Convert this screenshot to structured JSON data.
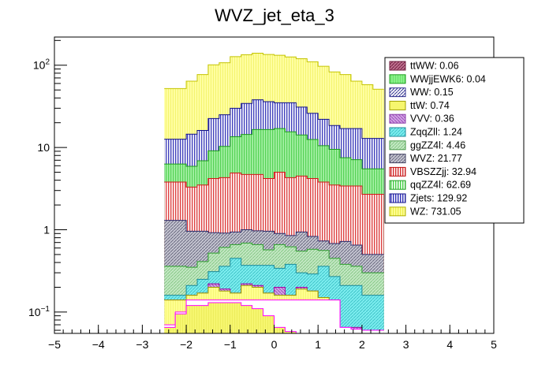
{
  "chart_data": {
    "type": "bar",
    "title": "WVZ_jet_eta_3",
    "xlabel": "",
    "ylabel": "",
    "xlim": [
      -5,
      5
    ],
    "ylim": [
      0.055,
      220
    ],
    "yscale": "log",
    "stacked": true,
    "bin_edges": [
      -2.5,
      -2.25,
      -2.0,
      -1.75,
      -1.5,
      -1.25,
      -1.0,
      -0.75,
      -0.5,
      -0.25,
      0.0,
      0.25,
      0.5,
      0.75,
      1.0,
      1.25,
      1.5,
      1.75,
      2.0,
      2.25,
      2.5
    ],
    "x_ticks": [
      -5,
      -4,
      -3,
      -2,
      -1,
      0,
      1,
      2,
      3,
      4,
      5
    ],
    "x_tick_labels": [
      "−5",
      "−4",
      "−3",
      "−2",
      "−1",
      "0",
      "1",
      "2",
      "3",
      "4",
      "5"
    ],
    "y_ticks": [
      {
        "value": 0.1,
        "base": "10",
        "exp": "−1"
      },
      {
        "value": 1,
        "label": "1"
      },
      {
        "value": 10,
        "label": "10"
      },
      {
        "value": 100,
        "base": "10",
        "exp": "2"
      }
    ],
    "legend_position": "top-right",
    "legend": [
      "ttWW: 0.06",
      "WWjjEWK6: 0.04",
      "WW: 0.15",
      "ttW: 0.74",
      "VVV: 0.36",
      "ZqqZll: 1.24",
      "ggZZ4l: 4.46",
      "WVZ: 21.77",
      "VBSZZjj: 32.94",
      "qqZZ4l: 62.69",
      "Zjets: 129.92",
      "WZ: 731.05"
    ],
    "cumulative_series": [
      {
        "name": "WVZ",
        "values": [
          0.065,
          0.095,
          0.12,
          0.12,
          0.13,
          0.13,
          0.13,
          0.12,
          0.11,
          0.09,
          0.065,
          0.058,
          0.055,
          0.055,
          0.055,
          0.055,
          0.055,
          0.055,
          0.055,
          0.055
        ]
      },
      {
        "name": "WZ",
        "values": [
          0.07,
          0.1,
          0.14,
          0.14,
          0.14,
          0.14,
          0.14,
          0.14,
          0.14,
          0.14,
          0.14,
          0.14,
          0.14,
          0.14,
          0.14,
          0.14,
          0.065,
          0.062,
          0.06,
          0.06
        ]
      },
      {
        "name": "ttW",
        "values": [
          0.14,
          0.14,
          0.16,
          0.17,
          0.2,
          0.18,
          0.17,
          0.21,
          0.2,
          0.17,
          0.16,
          0.16,
          0.19,
          0.18,
          0.15,
          0.14,
          0.06,
          0.06,
          0.06,
          0.06
        ]
      },
      {
        "name": "VVV",
        "values": [
          0.14,
          0.14,
          0.16,
          0.17,
          0.22,
          0.19,
          0.17,
          0.22,
          0.21,
          0.17,
          0.2,
          0.16,
          0.2,
          0.18,
          0.15,
          0.14,
          0.065,
          0.065,
          0.06,
          0.06
        ]
      },
      {
        "name": "ZqqZll",
        "values": [
          0.16,
          0.16,
          0.21,
          0.25,
          0.31,
          0.36,
          0.45,
          0.37,
          0.37,
          0.37,
          0.34,
          0.38,
          0.3,
          0.29,
          0.36,
          0.27,
          0.21,
          0.21,
          0.16,
          0.16
        ]
      },
      {
        "name": "ggZZ4l",
        "values": [
          0.36,
          0.36,
          0.35,
          0.41,
          0.52,
          0.61,
          0.66,
          0.69,
          0.66,
          0.57,
          0.66,
          0.62,
          0.55,
          0.58,
          0.56,
          0.45,
          0.38,
          0.36,
          0.3,
          0.3
        ]
      },
      {
        "name": "WVZ",
        "values": [
          1.3,
          1.3,
          0.96,
          0.96,
          0.92,
          0.91,
          0.94,
          1.0,
          0.97,
          0.96,
          0.9,
          0.85,
          0.94,
          0.83,
          0.73,
          0.68,
          0.72,
          0.65,
          0.5,
          0.5
        ]
      },
      {
        "name": "VBSZZjj",
        "values": [
          3.8,
          3.8,
          3.3,
          3.5,
          4.2,
          4.3,
          4.9,
          4.7,
          4.7,
          4.2,
          5.0,
          4.3,
          4.5,
          4.2,
          3.8,
          3.5,
          3.4,
          3.4,
          2.7,
          2.7
        ]
      },
      {
        "name": "qqZZ4l",
        "values": [
          6.3,
          6.3,
          5.9,
          6.9,
          9.1,
          10.3,
          13.5,
          14.4,
          16.5,
          16.5,
          17.0,
          15.5,
          14.2,
          12.5,
          10.5,
          9.5,
          7.5,
          7.1,
          5.5,
          5.5
        ]
      },
      {
        "name": "Zjets",
        "values": [
          12.6,
          12.6,
          14.5,
          16.1,
          22.5,
          25.0,
          30.0,
          34.3,
          38.0,
          36.0,
          35.0,
          35.0,
          31.0,
          26.0,
          22.0,
          18.5,
          17.0,
          17.0,
          12.9,
          12.9
        ]
      },
      {
        "name": "WZ",
        "values": [
          52.0,
          52.0,
          64.0,
          77.0,
          101.0,
          107.0,
          127.0,
          134.0,
          140.0,
          135.0,
          132.0,
          126.0,
          120.0,
          110.0,
          97.0,
          83.0,
          77.0,
          64.0,
          58.0,
          51.0
        ]
      }
    ]
  },
  "colors": {
    "fill_palette": [
      "#f5f57a",
      "#ffffff",
      "#fffb8e",
      "#b97ad9",
      "#5ce8ea",
      "#a3dca6",
      "#aeaebc",
      "#ffffff",
      "#84f084",
      "#ffffff",
      "#ffff84"
    ],
    "line_palette": [
      "#ff00ff",
      "#ff00ff",
      "#9a9a00",
      "#a000a0",
      "#1a8a9a",
      "#2e9e2e",
      "#2a2a6a",
      "#d01818",
      "#1c9a1c",
      "#10108a",
      "#c4c400"
    ],
    "legend_fill_palette": [
      "#b04060",
      "#84f084",
      "#6060b4",
      "#f6f66e",
      "#c68ad8",
      "#6ae0e4",
      "#a8d8a4",
      "#9a9aa8",
      "#e88080",
      "#b0f0b0",
      "#7f7fd8",
      "#ffff88"
    ]
  }
}
